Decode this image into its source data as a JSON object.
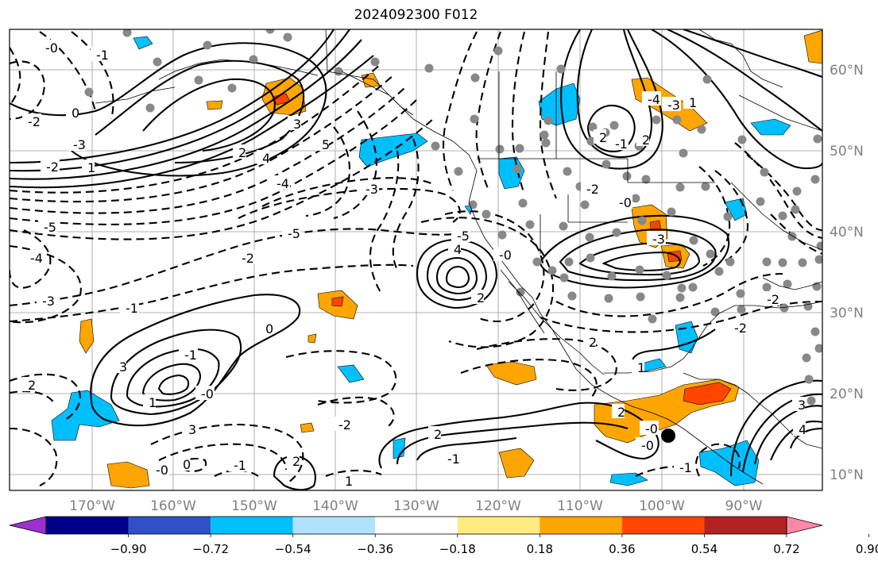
{
  "title": "2024092300 F012",
  "lon_labels": [
    "170°W",
    "160°W",
    "150°W",
    "140°W",
    "130°W",
    "120°W",
    "110°W",
    "100°W",
    "90°W"
  ],
  "lat_labels": [
    "60°N",
    "50°N",
    "40°N",
    "30°N",
    "20°N",
    "10°N"
  ],
  "contour_labels": [
    "-0",
    "-2",
    "-1",
    "-2",
    "-3",
    "-5",
    "-4",
    "0",
    "1",
    "2",
    "3",
    "4",
    "5",
    "-4",
    "-3",
    "-5",
    "-2",
    "-1",
    "0",
    "-3",
    "3",
    "2",
    "1",
    "-1",
    "-0",
    "-1",
    "0",
    "-0",
    "3",
    "2",
    "1",
    "-2",
    "2",
    "-1",
    "-0",
    "1",
    "2",
    "-0",
    "-1",
    "2",
    "-2",
    "-2",
    "3",
    "4",
    "-4",
    "-3",
    "1",
    "-0",
    "2",
    "-2",
    "-1",
    "-3",
    "2",
    "-5",
    "4",
    "-0",
    "2"
  ],
  "colorbar": {
    "tick_labels": [
      "−0.90",
      "−0.72",
      "−0.54",
      "−0.36",
      "−0.18",
      "0.18",
      "0.36",
      "0.54",
      "0.72",
      "0.90"
    ],
    "colors": [
      "#9b30d0",
      "#00008b",
      "#3050c8",
      "#00bfff",
      "#b0e2ff",
      "#ffffff",
      "#ffeb80",
      "#ffa500",
      "#ff4500",
      "#b22222",
      "#ff88aa"
    ]
  },
  "fill_colors": {
    "positive_low": "#ffa500",
    "positive_mid": "#ff4500",
    "negative": "#00bfff"
  },
  "marker_color": "#888888"
}
